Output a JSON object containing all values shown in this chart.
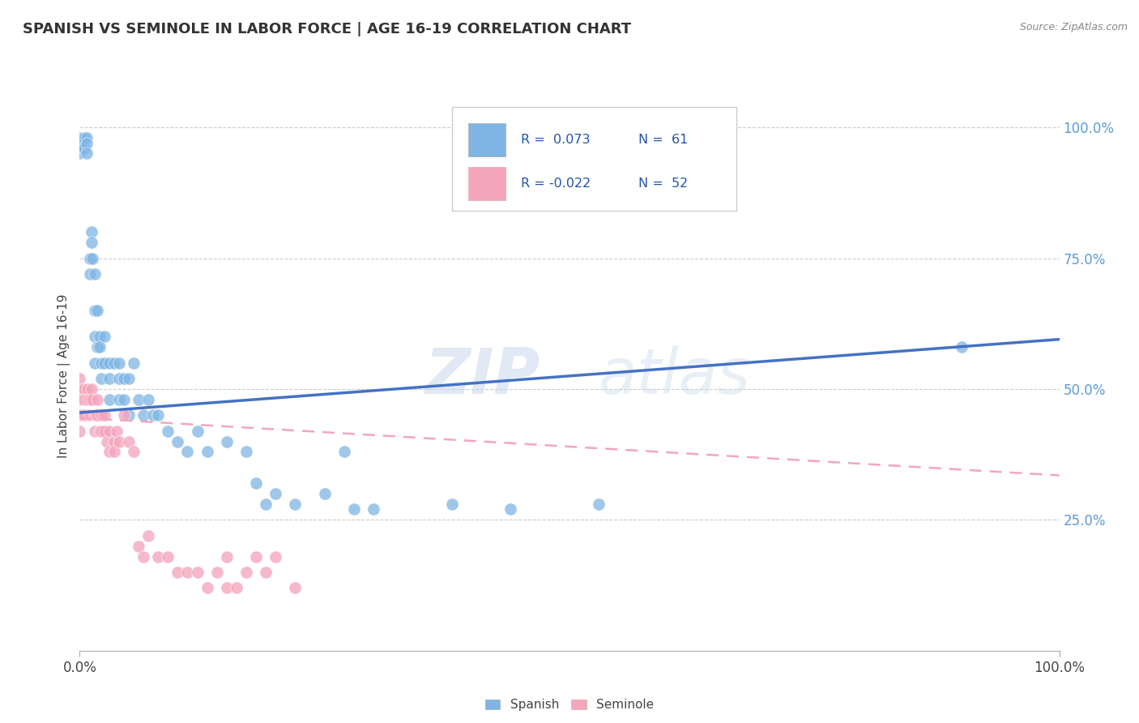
{
  "title": "SPANISH VS SEMINOLE IN LABOR FORCE | AGE 16-19 CORRELATION CHART",
  "source_text": "Source: ZipAtlas.com",
  "ylabel": "In Labor Force | Age 16-19",
  "xlim": [
    0.0,
    1.0
  ],
  "ylim": [
    0.0,
    1.05
  ],
  "xtick_positions": [
    0.0,
    1.0
  ],
  "xtick_labels": [
    "0.0%",
    "100.0%"
  ],
  "ytick_values": [
    0.25,
    0.5,
    0.75,
    1.0
  ],
  "ytick_labels": [
    "25.0%",
    "50.0%",
    "75.0%",
    "100.0%"
  ],
  "watermark_zip": "ZIP",
  "watermark_atlas": "atlas",
  "legend_r1": "R =  0.073",
  "legend_n1": "N =  61",
  "legend_r2": "R = -0.022",
  "legend_n2": "N =  52",
  "blue_scatter_color": "#7EB5E4",
  "pink_scatter_color": "#F4A6BE",
  "blue_line_color": "#4472C4",
  "pink_line_color": "#F4A6BE",
  "blue_trend_x": [
    0.0,
    1.0
  ],
  "blue_trend_y": [
    0.455,
    0.595
  ],
  "pink_trend_x": [
    0.0,
    1.0
  ],
  "pink_trend_y": [
    0.445,
    0.335
  ],
  "spanish_x": [
    0.0,
    0.0,
    0.0,
    0.005,
    0.005,
    0.007,
    0.007,
    0.007,
    0.01,
    0.01,
    0.012,
    0.012,
    0.013,
    0.015,
    0.015,
    0.015,
    0.015,
    0.018,
    0.018,
    0.02,
    0.02,
    0.022,
    0.022,
    0.025,
    0.025,
    0.03,
    0.03,
    0.03,
    0.035,
    0.04,
    0.04,
    0.04,
    0.045,
    0.045,
    0.05,
    0.05,
    0.055,
    0.06,
    0.065,
    0.07,
    0.075,
    0.08,
    0.09,
    0.1,
    0.11,
    0.12,
    0.13,
    0.15,
    0.17,
    0.18,
    0.19,
    0.2,
    0.22,
    0.25,
    0.27,
    0.28,
    0.3,
    0.38,
    0.44,
    0.53,
    0.9
  ],
  "spanish_y": [
    0.98,
    0.97,
    0.95,
    0.98,
    0.96,
    0.98,
    0.97,
    0.95,
    0.75,
    0.72,
    0.8,
    0.78,
    0.75,
    0.72,
    0.65,
    0.6,
    0.55,
    0.65,
    0.58,
    0.6,
    0.58,
    0.55,
    0.52,
    0.6,
    0.55,
    0.55,
    0.52,
    0.48,
    0.55,
    0.55,
    0.52,
    0.48,
    0.52,
    0.48,
    0.52,
    0.45,
    0.55,
    0.48,
    0.45,
    0.48,
    0.45,
    0.45,
    0.42,
    0.4,
    0.38,
    0.42,
    0.38,
    0.4,
    0.38,
    0.32,
    0.28,
    0.3,
    0.28,
    0.3,
    0.38,
    0.27,
    0.27,
    0.28,
    0.27,
    0.28,
    0.58
  ],
  "seminole_x": [
    0.0,
    0.0,
    0.0,
    0.0,
    0.0,
    0.005,
    0.005,
    0.005,
    0.008,
    0.008,
    0.01,
    0.01,
    0.012,
    0.013,
    0.015,
    0.015,
    0.016,
    0.018,
    0.018,
    0.02,
    0.022,
    0.022,
    0.025,
    0.025,
    0.028,
    0.03,
    0.03,
    0.035,
    0.035,
    0.038,
    0.04,
    0.045,
    0.05,
    0.055,
    0.06,
    0.065,
    0.07,
    0.08,
    0.09,
    0.1,
    0.11,
    0.12,
    0.13,
    0.14,
    0.15,
    0.15,
    0.16,
    0.17,
    0.18,
    0.19,
    0.2,
    0.22
  ],
  "seminole_y": [
    0.52,
    0.5,
    0.48,
    0.45,
    0.42,
    0.5,
    0.48,
    0.45,
    0.5,
    0.48,
    0.48,
    0.45,
    0.5,
    0.48,
    0.45,
    0.42,
    0.45,
    0.48,
    0.45,
    0.42,
    0.45,
    0.42,
    0.45,
    0.42,
    0.4,
    0.42,
    0.38,
    0.4,
    0.38,
    0.42,
    0.4,
    0.45,
    0.4,
    0.38,
    0.2,
    0.18,
    0.22,
    0.18,
    0.18,
    0.15,
    0.15,
    0.15,
    0.12,
    0.15,
    0.12,
    0.18,
    0.12,
    0.15,
    0.18,
    0.15,
    0.18,
    0.12
  ]
}
